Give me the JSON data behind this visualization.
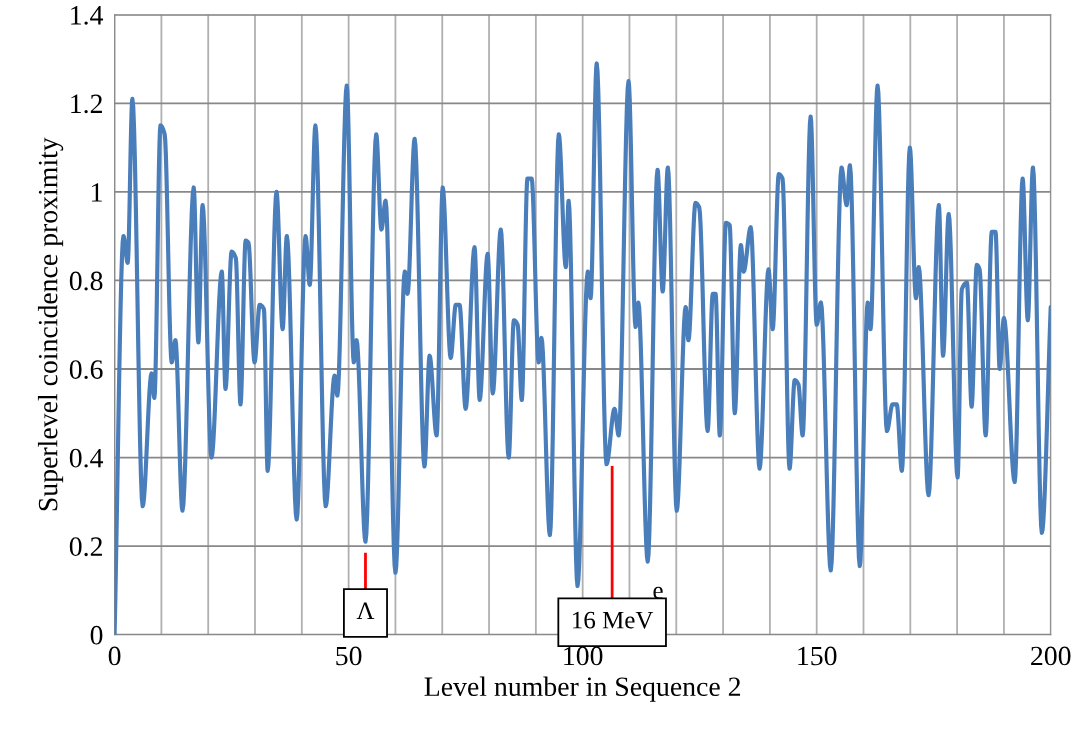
{
  "chart_data": {
    "type": "line",
    "xlabel": "Level number in Sequence 2",
    "ylabel": "Superlevel coincidence proximity",
    "xlim": [
      0,
      200
    ],
    "ylim": [
      0,
      1.4
    ],
    "xticks": [
      0,
      {
        "value": 10,
        "label": null
      },
      {
        "value": 20,
        "label": null
      },
      {
        "value": 30,
        "label": null
      },
      {
        "value": 40,
        "label": null
      },
      50,
      {
        "value": 60,
        "label": null
      },
      {
        "value": 70,
        "label": null
      },
      {
        "value": 80,
        "label": null
      },
      {
        "value": 90,
        "label": null
      },
      100,
      {
        "value": 110,
        "label": null
      },
      {
        "value": 120,
        "label": null
      },
      {
        "value": 130,
        "label": null
      },
      {
        "value": 140,
        "label": null
      },
      150,
      {
        "value": 160,
        "label": null
      },
      {
        "value": 170,
        "label": null
      },
      {
        "value": 180,
        "label": null
      },
      {
        "value": 190,
        "label": null
      },
      200
    ],
    "yticks": [
      0,
      0.2,
      0.4,
      0.6,
      0.8,
      1,
      1.2,
      1.4
    ],
    "grid": true,
    "marker": "none",
    "line_style": "solid",
    "series": [
      {
        "color": "#4a7ebb",
        "x": [
          0,
          1.9,
          2.8,
          3.8,
          6.0,
          7.9,
          8.5,
          9.8,
          10.7,
          12.2,
          13.0,
          14.5,
          16.9,
          17.9,
          18.8,
          20.7,
          22.9,
          23.7,
          25.0,
          25.9,
          26.9,
          28.0,
          28.6,
          29.9,
          31.0,
          31.9,
          32.7,
          34.6,
          35.9,
          36.8,
          38.9,
          40.8,
          41.7,
          42.9,
          45.1,
          47.0,
          47.6,
          49.6,
          51.1,
          51.7,
          53.6,
          55.9,
          57.0,
          57.9,
          60.0,
          62.0,
          62.6,
          64.1,
          66.2,
          67.3,
          68.8,
          70.1,
          71.8,
          72.9,
          73.7,
          75.0,
          76.9,
          78.0,
          79.7,
          80.8,
          82.5,
          84.2,
          85.3,
          86.1,
          87.0,
          88.2,
          89.1,
          90.6,
          91.2,
          93.0,
          94.9,
          96.4,
          97.0,
          98.9,
          101.1,
          101.7,
          103.0,
          105.1,
          106.8,
          107.7,
          109.8,
          111.3,
          111.9,
          113.9,
          116.0,
          117.1,
          118.2,
          120.1,
          122.0,
          122.6,
          124.1,
          124.9,
          126.7,
          127.8,
          128.4,
          129.3,
          130.6,
          131.4,
          132.5,
          133.8,
          134.4,
          135.9,
          137.8,
          139.7,
          140.6,
          141.9,
          142.7,
          144.2,
          145.3,
          146.1,
          147.0,
          148.7,
          150.0,
          150.9,
          153.0,
          155.3,
          156.4,
          157.1,
          159.2,
          160.9,
          161.5,
          163.0,
          165.0,
          166.2,
          167.1,
          168.2,
          169.9,
          171.2,
          171.8,
          173.9,
          176.1,
          177.0,
          178.2,
          180.1,
          181.0,
          182.1,
          183.1,
          184.2,
          184.8,
          186.1,
          187.4,
          188.2,
          189.1,
          190.0,
          192.3,
          194.0,
          195.1,
          196.2,
          198.1,
          200
        ],
        "values": [
          0,
          0.9,
          0.84,
          1.21,
          0.29,
          0.59,
          0.535,
          1.15,
          1.13,
          0.615,
          0.665,
          0.28,
          1.01,
          0.66,
          0.97,
          0.4,
          0.82,
          0.555,
          0.865,
          0.85,
          0.52,
          0.89,
          0.885,
          0.615,
          0.745,
          0.735,
          0.37,
          1.0,
          0.69,
          0.9,
          0.26,
          0.9,
          0.79,
          1.15,
          0.29,
          0.585,
          0.54,
          1.24,
          0.615,
          0.665,
          0.21,
          1.13,
          0.915,
          0.98,
          0.14,
          0.82,
          0.77,
          1.12,
          0.38,
          0.63,
          0.45,
          1.01,
          0.625,
          0.745,
          0.745,
          0.51,
          0.875,
          0.53,
          0.86,
          0.545,
          0.915,
          0.4,
          0.71,
          0.7,
          0.53,
          1.03,
          1.03,
          0.615,
          0.67,
          0.225,
          1.13,
          0.83,
          0.98,
          0.11,
          0.82,
          0.76,
          1.29,
          0.385,
          0.51,
          0.45,
          1.25,
          0.695,
          0.75,
          0.165,
          1.05,
          0.775,
          1.055,
          0.28,
          0.74,
          0.665,
          0.975,
          0.965,
          0.46,
          0.77,
          0.77,
          0.45,
          0.93,
          0.925,
          0.5,
          0.88,
          0.82,
          0.92,
          0.375,
          0.825,
          0.69,
          1.04,
          1.03,
          0.375,
          0.575,
          0.565,
          0.45,
          1.17,
          0.7,
          0.75,
          0.145,
          1.055,
          0.97,
          1.06,
          0.155,
          0.75,
          0.69,
          1.24,
          0.46,
          0.52,
          0.52,
          0.37,
          1.1,
          0.76,
          0.83,
          0.315,
          0.97,
          0.63,
          0.95,
          0.355,
          0.78,
          0.795,
          0.515,
          0.835,
          0.825,
          0.45,
          0.91,
          0.91,
          0.6,
          0.715,
          0.345,
          1.03,
          0.71,
          1.055,
          0.23,
          0.74
        ]
      }
    ],
    "ref_lines": [
      {
        "axis": "x",
        "value": 53.6,
        "label": "Λ",
        "color": "#ff0000"
      },
      {
        "axis": "x",
        "value": 106.3,
        "label": "16 MeV",
        "color": "#ff0000"
      }
    ],
    "annotations": [
      {
        "text": "e",
        "x": 113.9,
        "y": 0.165
      }
    ]
  }
}
